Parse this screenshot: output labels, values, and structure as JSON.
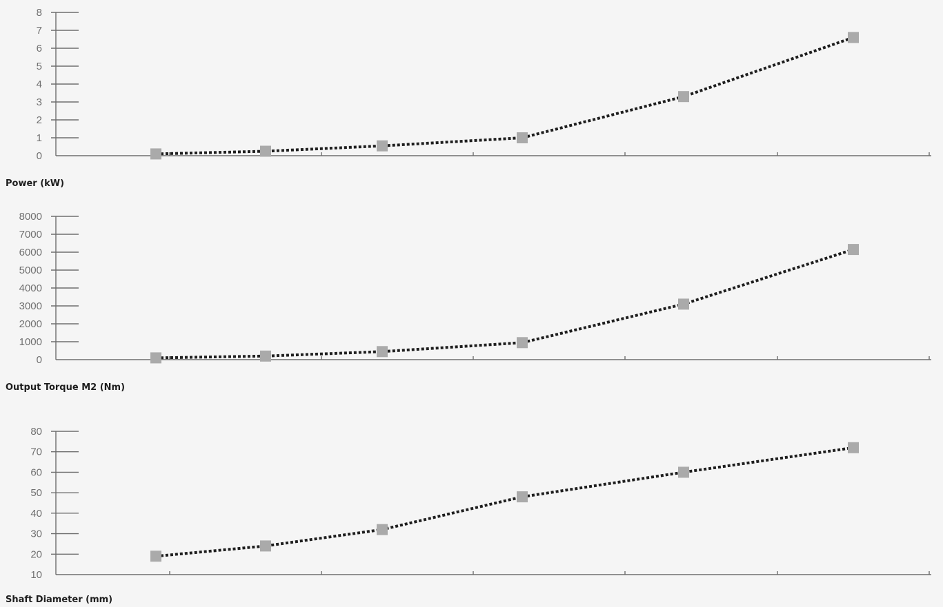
{
  "chart_data": [
    {
      "type": "line",
      "title": "Power (kW)",
      "ylim": [
        0,
        8
      ],
      "yticks": [
        0,
        1,
        2,
        3,
        4,
        5,
        6,
        7,
        8
      ],
      "x": [
        1,
        2,
        3,
        4,
        5,
        6
      ],
      "values": [
        0.1,
        0.25,
        0.55,
        1.0,
        3.3,
        6.6
      ],
      "marker": "square",
      "line_style": "dotted",
      "grid": false
    },
    {
      "type": "line",
      "title": "Output Torque M2 (Nm)",
      "ylim": [
        0,
        8000
      ],
      "yticks": [
        0,
        1000,
        2000,
        3000,
        4000,
        5000,
        6000,
        7000,
        8000
      ],
      "x": [
        1,
        2,
        3,
        4,
        5,
        6
      ],
      "values": [
        100,
        200,
        450,
        950,
        3100,
        6150
      ],
      "marker": "square",
      "line_style": "dotted",
      "grid": false
    },
    {
      "type": "line",
      "title": "Shaft Diameter (mm)",
      "ylim": [
        10,
        80
      ],
      "yticks": [
        10,
        20,
        30,
        40,
        50,
        60,
        70,
        80
      ],
      "x": [
        1,
        2,
        3,
        4,
        5,
        6
      ],
      "values": [
        19,
        24,
        32,
        48,
        60,
        72
      ],
      "marker": "square",
      "line_style": "dotted",
      "grid": false
    }
  ],
  "colors": {
    "background": "#f5f5f5",
    "axis": "#6e6e6e",
    "line": "#1e1e1e",
    "marker": "#aaaaaa",
    "tick_text": "#707070"
  }
}
